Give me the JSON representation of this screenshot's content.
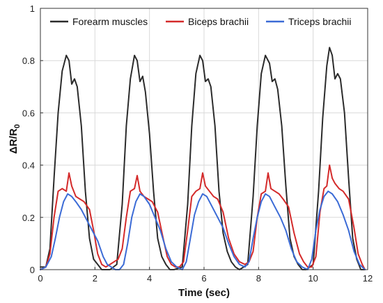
{
  "chart_data": {
    "type": "line",
    "xlabel": "Time (sec)",
    "ylabel": {
      "main": "ΔR/R",
      "sub": "0"
    },
    "xlim": [
      0,
      12
    ],
    "ylim": [
      0,
      1
    ],
    "xticks": [
      "0",
      "2",
      "4",
      "6",
      "8",
      "10",
      "12"
    ],
    "yticks": [
      "0",
      "0.2",
      "0.4",
      "0.6",
      "0.8",
      "1"
    ],
    "grid": true,
    "legend_position": "top",
    "series": [
      {
        "name": "Forearm muscles",
        "color": "#2b2b2b",
        "x": [
          0,
          0.2,
          0.35,
          0.5,
          0.65,
          0.8,
          0.95,
          1.05,
          1.15,
          1.25,
          1.35,
          1.5,
          1.65,
          1.8,
          1.95,
          2.1,
          2.25,
          2.4,
          2.55,
          2.8,
          3.0,
          3.15,
          3.3,
          3.45,
          3.55,
          3.65,
          3.75,
          3.85,
          4.0,
          4.15,
          4.3,
          4.45,
          4.6,
          4.75,
          4.9,
          5.2,
          5.4,
          5.55,
          5.7,
          5.85,
          5.95,
          6.05,
          6.15,
          6.25,
          6.4,
          6.55,
          6.7,
          6.85,
          7.0,
          7.15,
          7.3,
          7.6,
          7.8,
          7.95,
          8.1,
          8.25,
          8.4,
          8.5,
          8.6,
          8.7,
          8.85,
          9.0,
          9.15,
          9.3,
          9.45,
          9.6,
          9.75,
          10.0,
          10.2,
          10.35,
          10.5,
          10.6,
          10.7,
          10.8,
          10.9,
          11.0,
          11.15,
          11.3,
          11.45,
          11.6,
          11.75,
          11.9
        ],
        "y": [
          0.01,
          0.01,
          0.08,
          0.35,
          0.6,
          0.76,
          0.82,
          0.8,
          0.71,
          0.73,
          0.7,
          0.55,
          0.3,
          0.12,
          0.04,
          0.02,
          0.0,
          0.0,
          0.0,
          0.02,
          0.25,
          0.55,
          0.73,
          0.82,
          0.8,
          0.72,
          0.74,
          0.68,
          0.52,
          0.3,
          0.12,
          0.05,
          0.02,
          0.0,
          0.0,
          0.01,
          0.25,
          0.55,
          0.75,
          0.82,
          0.8,
          0.72,
          0.73,
          0.7,
          0.55,
          0.3,
          0.14,
          0.07,
          0.03,
          0.01,
          0.0,
          0.02,
          0.28,
          0.55,
          0.75,
          0.82,
          0.79,
          0.72,
          0.73,
          0.69,
          0.55,
          0.32,
          0.12,
          0.05,
          0.02,
          0.0,
          0.0,
          0.02,
          0.3,
          0.58,
          0.78,
          0.85,
          0.82,
          0.73,
          0.75,
          0.73,
          0.6,
          0.35,
          0.12,
          0.04,
          0.0,
          0.0
        ]
      },
      {
        "name": "Biceps brachii",
        "color": "#d42a2a",
        "x": [
          0,
          0.2,
          0.35,
          0.5,
          0.65,
          0.8,
          0.95,
          1.05,
          1.15,
          1.3,
          1.45,
          1.6,
          1.8,
          1.95,
          2.1,
          2.25,
          2.4,
          2.55,
          2.7,
          2.85,
          3.0,
          3.15,
          3.3,
          3.45,
          3.55,
          3.65,
          3.8,
          3.95,
          4.1,
          4.3,
          4.5,
          4.65,
          4.8,
          4.95,
          5.1,
          5.25,
          5.4,
          5.55,
          5.7,
          5.85,
          5.95,
          6.05,
          6.2,
          6.35,
          6.5,
          6.7,
          6.9,
          7.1,
          7.3,
          7.5,
          7.65,
          7.8,
          7.95,
          8.1,
          8.25,
          8.35,
          8.45,
          8.6,
          8.75,
          8.9,
          9.1,
          9.3,
          9.5,
          9.65,
          9.8,
          9.95,
          10.1,
          10.25,
          10.4,
          10.5,
          10.6,
          10.7,
          10.8,
          10.95,
          11.1,
          11.3,
          11.5,
          11.65,
          11.8,
          11.9
        ],
        "y": [
          0.0,
          0.01,
          0.06,
          0.2,
          0.3,
          0.31,
          0.3,
          0.37,
          0.32,
          0.28,
          0.27,
          0.26,
          0.23,
          0.15,
          0.06,
          0.02,
          0.01,
          0.02,
          0.03,
          0.04,
          0.08,
          0.2,
          0.3,
          0.31,
          0.36,
          0.3,
          0.28,
          0.27,
          0.26,
          0.22,
          0.12,
          0.05,
          0.02,
          0.01,
          0.01,
          0.03,
          0.15,
          0.28,
          0.3,
          0.31,
          0.37,
          0.32,
          0.3,
          0.28,
          0.27,
          0.22,
          0.12,
          0.06,
          0.03,
          0.02,
          0.03,
          0.07,
          0.2,
          0.29,
          0.3,
          0.37,
          0.31,
          0.3,
          0.29,
          0.27,
          0.24,
          0.14,
          0.06,
          0.03,
          0.01,
          0.01,
          0.05,
          0.22,
          0.31,
          0.32,
          0.4,
          0.35,
          0.33,
          0.31,
          0.3,
          0.27,
          0.16,
          0.06,
          0.02,
          0.0
        ]
      },
      {
        "name": "Triceps brachii",
        "color": "#3b6bd6",
        "x": [
          0,
          0.2,
          0.4,
          0.55,
          0.7,
          0.85,
          1.0,
          1.15,
          1.3,
          1.5,
          1.7,
          1.9,
          2.1,
          2.3,
          2.45,
          2.6,
          2.75,
          2.9,
          3.05,
          3.2,
          3.35,
          3.5,
          3.65,
          3.8,
          4.0,
          4.2,
          4.4,
          4.6,
          4.8,
          5.0,
          5.2,
          5.35,
          5.5,
          5.65,
          5.8,
          5.95,
          6.1,
          6.3,
          6.5,
          6.7,
          6.9,
          7.1,
          7.3,
          7.5,
          7.65,
          7.8,
          7.95,
          8.1,
          8.25,
          8.4,
          8.6,
          8.8,
          9.0,
          9.2,
          9.4,
          9.6,
          9.8,
          9.95,
          10.1,
          10.25,
          10.4,
          10.55,
          10.7,
          10.9,
          11.1,
          11.3,
          11.5,
          11.7,
          11.9
        ],
        "y": [
          0.0,
          0.01,
          0.05,
          0.12,
          0.2,
          0.26,
          0.29,
          0.28,
          0.26,
          0.23,
          0.19,
          0.15,
          0.11,
          0.05,
          0.02,
          0.01,
          0.0,
          0.0,
          0.02,
          0.1,
          0.2,
          0.26,
          0.29,
          0.28,
          0.25,
          0.2,
          0.15,
          0.08,
          0.03,
          0.01,
          0.0,
          0.03,
          0.12,
          0.21,
          0.26,
          0.29,
          0.28,
          0.24,
          0.2,
          0.16,
          0.1,
          0.05,
          0.02,
          0.01,
          0.03,
          0.12,
          0.2,
          0.26,
          0.29,
          0.28,
          0.24,
          0.2,
          0.15,
          0.08,
          0.03,
          0.01,
          0.0,
          0.04,
          0.15,
          0.23,
          0.28,
          0.3,
          0.29,
          0.26,
          0.21,
          0.15,
          0.07,
          0.02,
          0.0
        ]
      }
    ]
  }
}
